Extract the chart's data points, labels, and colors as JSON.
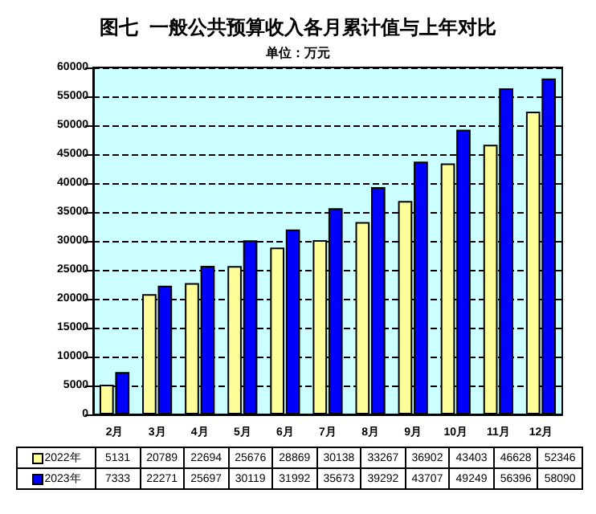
{
  "chart_data": {
    "type": "bar",
    "title": "图七  一般公共预算收入各月累计值与上年对比",
    "subtitle": "单位：万元",
    "categories": [
      "2月",
      "3月",
      "4月",
      "5月",
      "6月",
      "7月",
      "8月",
      "9月",
      "10月",
      "11月",
      "12月"
    ],
    "series": [
      {
        "name": "2022年",
        "color": "#ffff99",
        "values": [
          5131,
          20789,
          22694,
          25676,
          28869,
          30138,
          33267,
          36902,
          43403,
          46628,
          52346
        ]
      },
      {
        "name": "2023年",
        "color": "#0000ff",
        "values": [
          7333,
          22271,
          25697,
          30119,
          31992,
          35673,
          39292,
          43707,
          49249,
          56396,
          58090
        ]
      }
    ],
    "ylim": [
      0,
      60000
    ],
    "yticks": [
      0,
      5000,
      10000,
      15000,
      20000,
      25000,
      30000,
      35000,
      40000,
      45000,
      50000,
      55000,
      60000
    ],
    "grid": "y",
    "legend": "bottom",
    "data_labels": true
  }
}
